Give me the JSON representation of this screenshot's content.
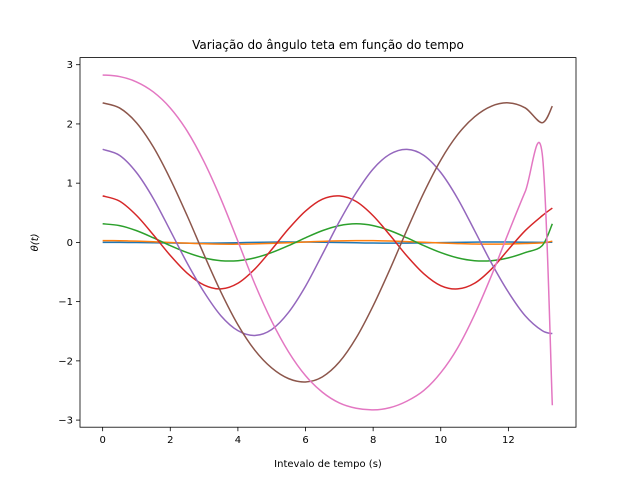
{
  "chart_data": {
    "type": "line",
    "title": "Variação do ângulo teta em função do tempo",
    "xlabel": "Intevalo de tempo (s)",
    "ylabel": "θ(t)",
    "xlim": [
      -0.67,
      14.0
    ],
    "ylim": [
      -3.12,
      3.12
    ],
    "xticks": [
      0,
      2,
      4,
      6,
      8,
      10,
      12
    ],
    "yticks": [
      -3,
      -2,
      -1,
      0,
      1,
      2,
      3
    ],
    "xtick_labels": [
      "0",
      "2",
      "4",
      "6",
      "8",
      "10",
      "12"
    ],
    "ytick_labels": [
      "−3",
      "−2",
      "−1",
      "0",
      "1",
      "2",
      "3"
    ],
    "grid": false,
    "legend": "none",
    "x": [
      0,
      0.5,
      1,
      1.5,
      2,
      2.5,
      3,
      3.5,
      4,
      4.5,
      5,
      5.5,
      6,
      6.5,
      7,
      7.5,
      8,
      8.5,
      9,
      9.5,
      10,
      10.5,
      11,
      11.5,
      12,
      12.5,
      13,
      13.3
    ],
    "series": [
      {
        "color": "#1f77b4",
        "values": [
          0.0,
          0.0,
          -0.002,
          -0.006,
          -0.01,
          -0.013,
          -0.013,
          -0.01,
          -0.005,
          0.0,
          0.004,
          0.007,
          0.006,
          0.003,
          -0.002,
          -0.007,
          -0.011,
          -0.013,
          -0.012,
          -0.009,
          -0.004,
          0.001,
          0.005,
          0.007,
          0.006,
          0.003,
          0.001,
          0.003
        ]
      },
      {
        "color": "#ff7f0e",
        "values": [
          0.03,
          0.028,
          0.021,
          0.011,
          -0.001,
          -0.013,
          -0.023,
          -0.029,
          -0.03,
          -0.025,
          -0.016,
          -0.005,
          0.007,
          0.018,
          0.026,
          0.03,
          0.029,
          0.023,
          0.013,
          0.002,
          -0.01,
          -0.02,
          -0.028,
          -0.03,
          -0.027,
          -0.019,
          -0.008,
          0.02
        ]
      },
      {
        "color": "#2ca02c",
        "values": [
          0.314,
          0.284,
          0.199,
          0.078,
          -0.054,
          -0.172,
          -0.261,
          -0.309,
          -0.309,
          -0.261,
          -0.172,
          -0.054,
          0.078,
          0.199,
          0.284,
          0.314,
          0.284,
          0.199,
          0.078,
          -0.054,
          -0.172,
          -0.261,
          -0.309,
          -0.309,
          -0.261,
          -0.172,
          -0.054,
          0.314
        ]
      },
      {
        "color": "#d62728",
        "values": [
          0.785,
          0.697,
          0.456,
          0.127,
          -0.22,
          -0.52,
          -0.72,
          -0.785,
          -0.69,
          -0.45,
          -0.12,
          0.23,
          0.53,
          0.73,
          0.785,
          0.69,
          0.45,
          0.12,
          -0.23,
          -0.53,
          -0.73,
          -0.785,
          -0.69,
          -0.45,
          -0.12,
          0.2,
          0.45,
          0.58
        ]
      },
      {
        "color": "#9467bd",
        "values": [
          1.571,
          1.47,
          1.18,
          0.74,
          0.2,
          -0.35,
          -0.84,
          -1.24,
          -1.49,
          -1.571,
          -1.47,
          -1.18,
          -0.74,
          -0.2,
          0.35,
          0.84,
          1.24,
          1.49,
          1.571,
          1.47,
          1.18,
          0.74,
          0.2,
          -0.35,
          -0.84,
          -1.24,
          -1.49,
          -1.54
        ]
      },
      {
        "color": "#8c564b",
        "values": [
          2.356,
          2.27,
          2.02,
          1.61,
          1.07,
          0.45,
          -0.21,
          -0.84,
          -1.39,
          -1.82,
          -2.12,
          -2.3,
          -2.356,
          -2.27,
          -2.02,
          -1.61,
          -1.07,
          -0.45,
          0.21,
          0.84,
          1.39,
          1.82,
          2.12,
          2.3,
          2.356,
          2.27,
          2.02,
          2.3
        ]
      },
      {
        "color": "#e377c2",
        "values": [
          2.827,
          2.8,
          2.71,
          2.54,
          2.27,
          1.88,
          1.36,
          0.73,
          0.02,
          -0.7,
          -1.33,
          -1.85,
          -2.25,
          -2.53,
          -2.71,
          -2.8,
          -2.827,
          -2.79,
          -2.68,
          -2.5,
          -2.2,
          -1.78,
          -1.22,
          -0.56,
          0.16,
          0.86,
          1.5,
          -2.75
        ]
      }
    ]
  }
}
